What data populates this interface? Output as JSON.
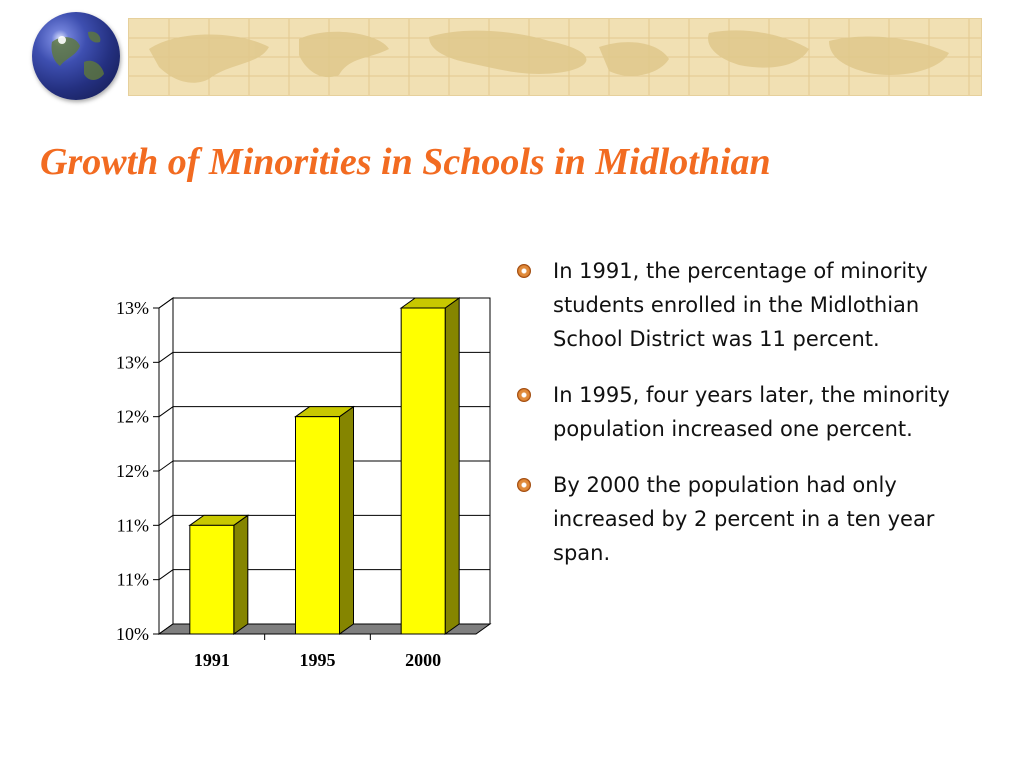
{
  "slide": {
    "title": "Growth of Minorities in Schools in Midlothian"
  },
  "bullets": [
    "In 1991, the percentage of minority students enrolled in the Midlothian School District was 11 percent.",
    "In 1995, four years later, the minority population increased one percent.",
    "By 2000 the population had only increased by 2 percent in a ten year span."
  ],
  "chart_data": {
    "type": "bar",
    "categories": [
      "1991",
      "1995",
      "2000"
    ],
    "values": [
      11,
      12,
      13
    ],
    "title": "",
    "xlabel": "",
    "ylabel": "",
    "ylim": [
      10,
      13
    ],
    "y_tick_labels": [
      "10%",
      "11%",
      "11%",
      "12%",
      "12%",
      "13%",
      "13%"
    ],
    "grid": true,
    "legend": "none",
    "bar_color": "#ffff00",
    "bar_side_color": "#858500",
    "floor_color": "#7f7f7f"
  },
  "colors": {
    "title": "#f26b21",
    "banner": "#f1e0b3",
    "bullet": "#e08a3a"
  }
}
